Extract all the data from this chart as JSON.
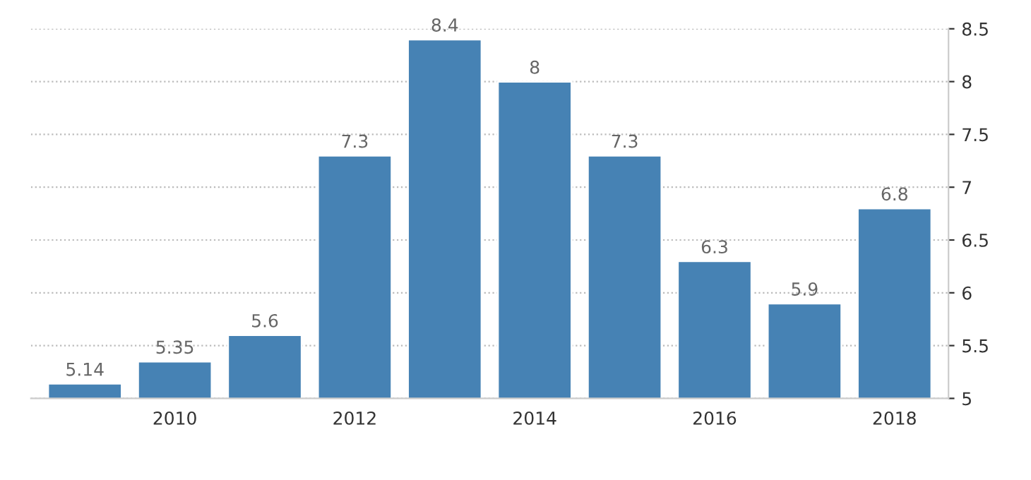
{
  "chart_data": {
    "type": "bar",
    "categories": [
      null,
      "2010",
      null,
      "2012",
      null,
      "2014",
      null,
      "2016",
      null,
      "2018"
    ],
    "values": [
      5.14,
      5.35,
      5.6,
      7.3,
      8.4,
      8,
      7.3,
      6.3,
      5.9,
      6.8
    ],
    "color": "#4682b4",
    "ylim": [
      5,
      8.5
    ],
    "yticks": [
      5,
      5.5,
      6,
      6.5,
      7,
      7.5,
      8,
      8.5
    ],
    "grid": "y",
    "data_labels": true
  }
}
